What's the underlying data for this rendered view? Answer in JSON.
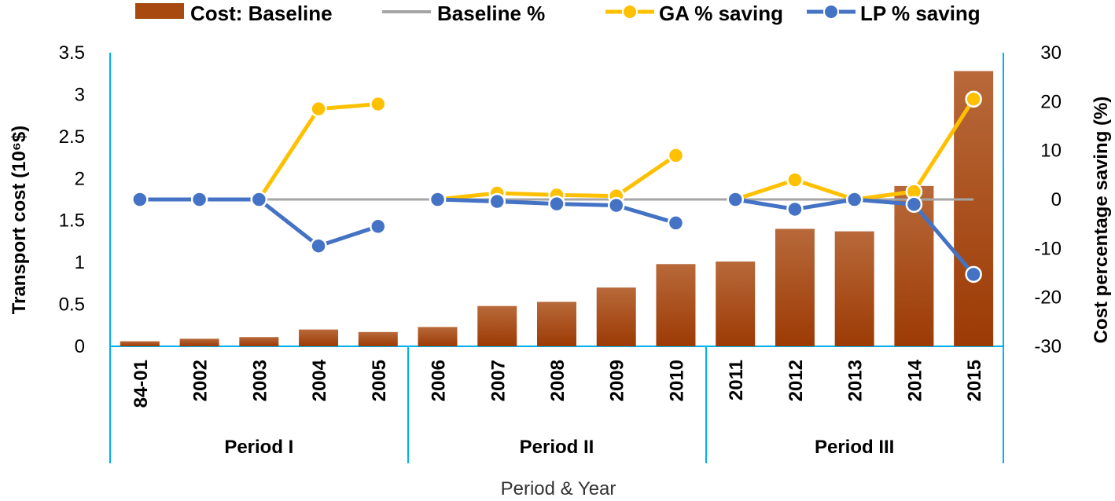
{
  "chart_data": {
    "type": "bar+line",
    "title": "",
    "categories": [
      "84-01",
      "2002",
      "2003",
      "2004",
      "2005",
      "2006",
      "2007",
      "2008",
      "2009",
      "2010",
      "2011",
      "2012",
      "2013",
      "2014",
      "2015"
    ],
    "groups": [
      {
        "label": "Period I",
        "categories": [
          "84-01",
          "2002",
          "2003",
          "2004",
          "2005"
        ]
      },
      {
        "label": "Period II",
        "categories": [
          "2006",
          "2007",
          "2008",
          "2009",
          "2010"
        ]
      },
      {
        "label": "Period III",
        "categories": [
          "2011",
          "2012",
          "2013",
          "2014",
          "2015"
        ]
      }
    ],
    "series": [
      {
        "name": "Cost: Baseline",
        "type": "bar",
        "axis": "left",
        "color": "#A84A10",
        "values": [
          0.06,
          0.09,
          0.11,
          0.2,
          0.17,
          0.23,
          0.48,
          0.53,
          0.7,
          0.98,
          1.01,
          1.4,
          1.37,
          1.91,
          3.28
        ]
      },
      {
        "name": "Baseline %",
        "type": "line",
        "axis": "right",
        "color": "#A5A5A5",
        "values": [
          0,
          0,
          0,
          0,
          0,
          0,
          0,
          0,
          0,
          0,
          0,
          0,
          0,
          0,
          0
        ]
      },
      {
        "name": "GA % saving",
        "type": "line",
        "axis": "right",
        "color": "#FFC000",
        "values": [
          null,
          null,
          0,
          18.5,
          19.5,
          0,
          1.3,
          0.9,
          0.7,
          9,
          0,
          4,
          0,
          1.6,
          20.5
        ]
      },
      {
        "name": "LP % saving",
        "type": "line",
        "axis": "right",
        "color": "#4472C4",
        "values": [
          0,
          0,
          0,
          -9.5,
          -5.5,
          0,
          -0.4,
          -0.9,
          -1.2,
          -4.8,
          0,
          -2,
          0,
          -1,
          -15.3
        ]
      }
    ],
    "ylabel": "Transport cost  (10⁶$)",
    "ylim": [
      0,
      3.5
    ],
    "yticks": [
      "0",
      "0.5",
      "1",
      "1.5",
      "2",
      "2.5",
      "3",
      "3.5"
    ],
    "y2label": "Cost percentage saving  (%)",
    "y2lim": [
      -30,
      30
    ],
    "y2ticks": [
      "-30",
      "-20",
      "-10",
      "0",
      "10",
      "20",
      "30"
    ],
    "xlabel": "Period & Year",
    "legend_position": "top"
  }
}
